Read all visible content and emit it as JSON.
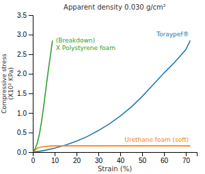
{
  "chart_data": {
    "type": "line",
    "title": "Apparent density 0.030 g/cm²",
    "xlabel": "Strain (%)",
    "ylabel": "Compressive stress\n(X10² KPa)",
    "xlim": [
      0,
      75
    ],
    "ylim": [
      0,
      3.5
    ],
    "xticks": [
      0,
      10,
      20,
      30,
      40,
      50,
      60,
      70
    ],
    "yticks": [
      {
        "value": 0,
        "label": "0.0"
      },
      0.5,
      {
        "value": 1,
        "label": "1.0"
      },
      1.5,
      {
        "value": 2,
        "label": "2.0"
      },
      2.5,
      {
        "value": 3,
        "label": "3.0"
      },
      3.5
    ],
    "grid": false,
    "series": [
      {
        "name": "Toraypef®",
        "x": [
          0,
          3,
          6,
          10,
          15,
          20,
          25,
          30,
          35,
          40,
          45,
          50,
          55,
          60,
          65,
          70,
          72
        ],
        "values": [
          0.0,
          0.02,
          0.05,
          0.1,
          0.18,
          0.28,
          0.4,
          0.55,
          0.72,
          0.92,
          1.15,
          1.42,
          1.72,
          2.02,
          2.3,
          2.62,
          2.85
        ]
      },
      {
        "name": "Urethane foam (soft)",
        "x": [
          0,
          2,
          5,
          8,
          12,
          16,
          20,
          28,
          36,
          45,
          55,
          65,
          72
        ],
        "values": [
          0.0,
          0.1,
          0.14,
          0.155,
          0.16,
          0.16,
          0.16,
          0.16,
          0.16,
          0.16,
          0.16,
          0.16,
          0.16
        ]
      },
      {
        "name": "(Breakdown)\nX Polystyrene foam",
        "x": [
          0,
          1,
          2,
          3,
          4,
          5,
          6,
          7,
          7.5,
          8,
          8.5,
          9
        ],
        "values": [
          0.0,
          0.08,
          0.22,
          0.45,
          0.78,
          1.18,
          1.62,
          2.05,
          2.25,
          2.45,
          2.65,
          2.85
        ]
      }
    ]
  }
}
